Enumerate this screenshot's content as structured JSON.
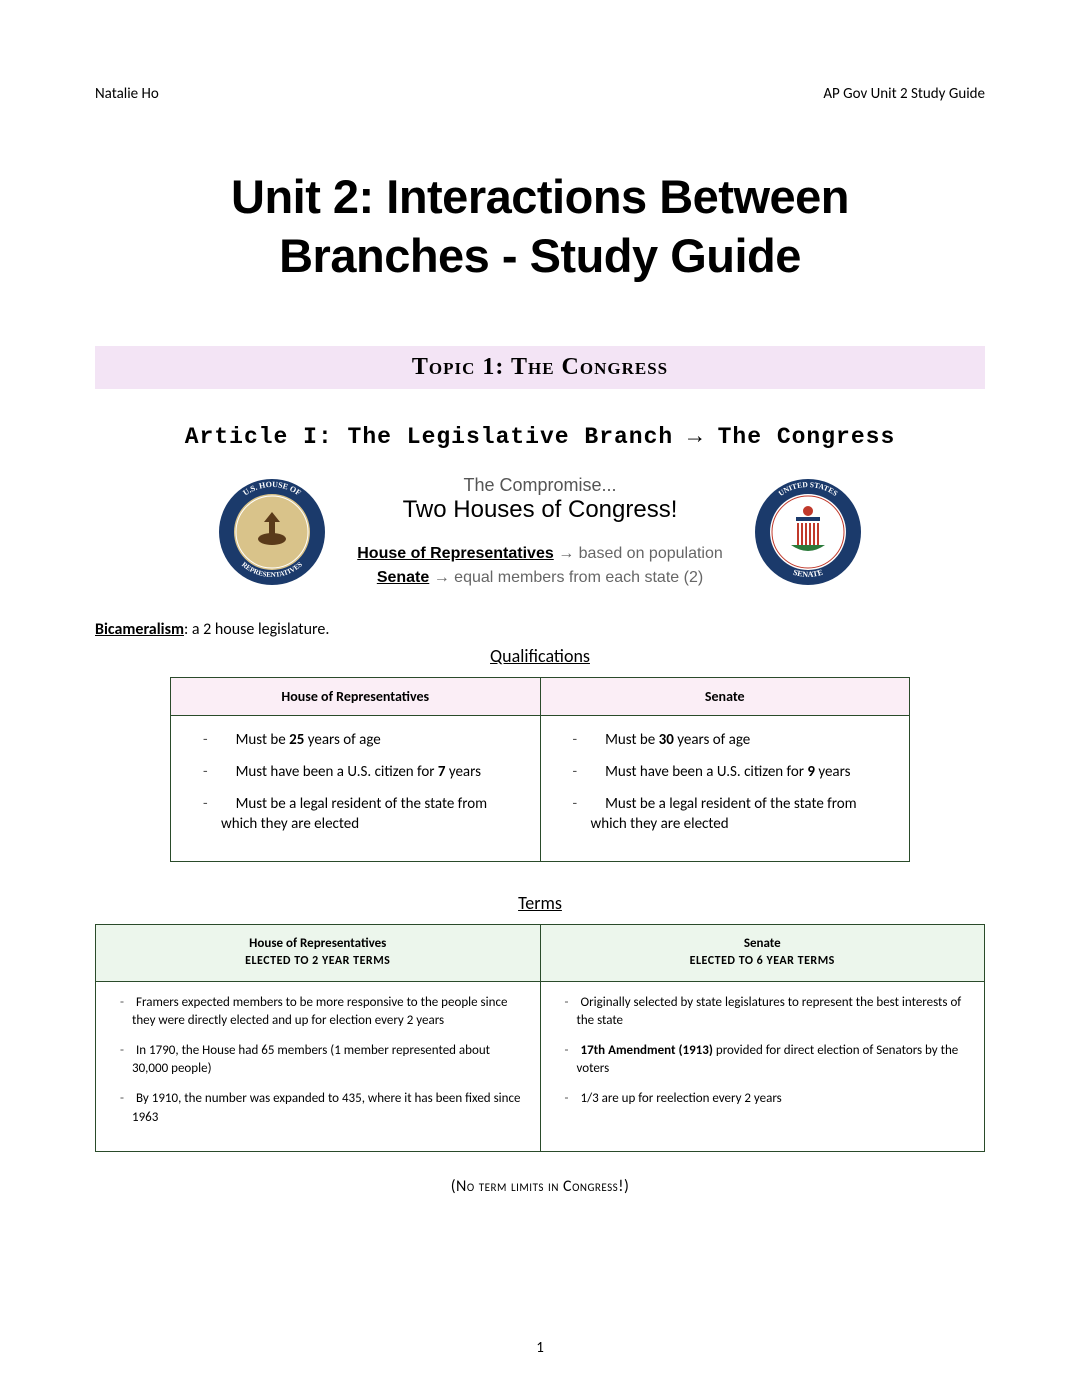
{
  "header": {
    "left": "Natalie Ho",
    "right": "AP Gov Unit 2 Study Guide"
  },
  "title": {
    "line1": "Unit 2: Interactions Between",
    "line2": "Branches - Study Guide"
  },
  "topic_banner": "Topic 1: The Congress",
  "article_heading": "Article I: The Legislative Branch → The Congress",
  "compromise": {
    "line1": "The Compromise...",
    "line2": "Two Houses of Congress!",
    "house_label": "House of Representatives",
    "house_desc": " → based on population",
    "senate_label": "Senate",
    "senate_desc": " → equal members from each state (2)"
  },
  "seals": {
    "house": {
      "ring_color": "#1b3a6b",
      "inner_color": "#d9c38a",
      "text": "U.S. HOUSE OF REPRESENTATIVES"
    },
    "senate": {
      "ring_color": "#1b3a6b",
      "inner_color": "#ffffff",
      "text": "UNITED STATES SENATE"
    }
  },
  "bicameralism": {
    "term": "Bicameralism",
    "def": ": a 2 house legislature."
  },
  "qualifications": {
    "title": "Qualifications",
    "header_bg": "#fbeef6",
    "cols": [
      "House of Representatives",
      "Senate"
    ],
    "house_items": [
      {
        "pre": "Must be ",
        "bold": "25",
        "post": " years of age"
      },
      {
        "pre": "Must have been a U.S. citizen for ",
        "bold": "7",
        "post": " years"
      },
      {
        "pre": "Must be a legal resident of the state from which they are elected",
        "bold": "",
        "post": ""
      }
    ],
    "senate_items": [
      {
        "pre": "Must be ",
        "bold": "30",
        "post": " years of age"
      },
      {
        "pre": "Must have been a U.S. citizen for ",
        "bold": "9",
        "post": " years"
      },
      {
        "pre": "Must be a legal resident of the state from which they are elected",
        "bold": "",
        "post": ""
      }
    ]
  },
  "terms": {
    "title": "Terms",
    "header_bg": "#ecf6ec",
    "house_header": {
      "name": "House of Representatives",
      "sub": "ELECTED TO 2 YEAR TERMS"
    },
    "senate_header": {
      "name": "Senate",
      "sub": "ELECTED TO 6 YEAR TERMS"
    },
    "house_items": [
      "Framers expected members to be more responsive to the people since they were directly elected and up for election every 2 years",
      "In 1790, the House had 65 members (1 member represented about 30,000 people)",
      "By 1910, the number was expanded to 435, where it has been fixed since 1963"
    ],
    "senate_items": [
      {
        "text": "Originally selected by state legislatures to represent the best interests of the state",
        "bold": ""
      },
      {
        "bold": "17th Amendment (1913)",
        "text": " provided for direct election of Senators by the voters"
      },
      {
        "text": "1/3 are up for reelection every 2 years",
        "bold": ""
      }
    ]
  },
  "no_limits": "(No term limits in Congress!)",
  "page_number": "1",
  "colors": {
    "border": "#2a4b2a"
  }
}
